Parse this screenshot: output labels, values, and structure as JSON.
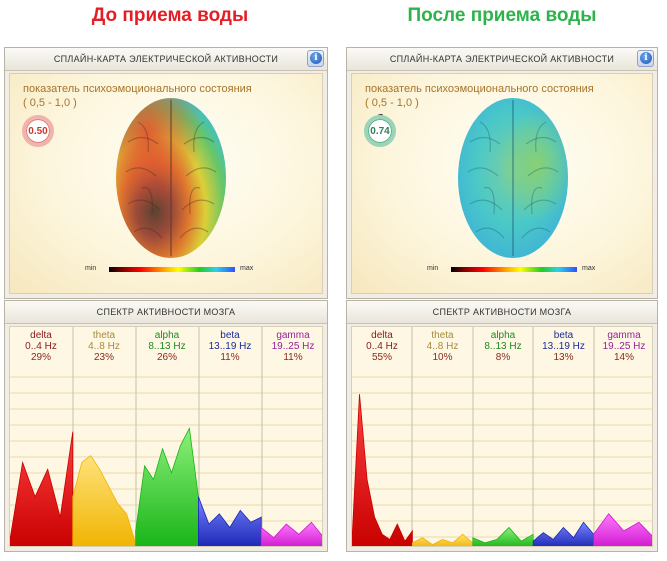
{
  "headers": {
    "before": "До приема воды",
    "after": "После приема воды"
  },
  "colors": {
    "before_header": "#e31e24",
    "after_header": "#2db34a"
  },
  "panels": [
    {
      "map_title": "СПЛАЙН-КАРТА ЭЛЕКТРИЧЕСКОЙ АКТИВНОСТИ",
      "state_title": "показатель психоэмоционального состояния",
      "state_range": "( 0,5 - 1,0 )",
      "gauge_value": "0.50",
      "gauge_color": "#e05a52",
      "scale_min": "min",
      "scale_max": "max",
      "spectrum_title": "СПЕКТР АКТИВНОСТИ МОЗГА",
      "bands": [
        {
          "name": "delta",
          "range": "0..4 Hz",
          "pct": "29%",
          "color": "#c81414"
        },
        {
          "name": "theta",
          "range": "4..8 Hz",
          "pct": "23%",
          "color": "#c8a040"
        },
        {
          "name": "alpha",
          "range": "8..13 Hz",
          "pct": "26%",
          "color": "#1e9a1e"
        },
        {
          "name": "beta",
          "range": "13..19 Hz",
          "pct": "11%",
          "color": "#1e2aa8"
        },
        {
          "name": "gamma",
          "range": "19..25 Hz",
          "pct": "11%",
          "color": "#b028b0"
        }
      ]
    },
    {
      "map_title": "СПЛАЙН-КАРТА ЭЛЕКТРИЧЕСКОЙ АКТИВНОСТИ",
      "state_title": "показатель психоэмоционального состояния",
      "state_range": "( 0,5 - 1,0 )",
      "gauge_value": "0.74",
      "gauge_color": "#4aa47a",
      "scale_min": "min",
      "scale_max": "max",
      "spectrum_title": "СПЕКТР АКТИВНОСТИ МОЗГА",
      "bands": [
        {
          "name": "delta",
          "range": "0..4 Hz",
          "pct": "55%",
          "color": "#c81414"
        },
        {
          "name": "theta",
          "range": "4..8 Hz",
          "pct": "10%",
          "color": "#c8a040"
        },
        {
          "name": "alpha",
          "range": "8..13 Hz",
          "pct": "8%",
          "color": "#1e9a1e"
        },
        {
          "name": "beta",
          "range": "13..19 Hz",
          "pct": "13%",
          "color": "#1e2aa8"
        },
        {
          "name": "gamma",
          "range": "19..25 Hz",
          "pct": "14%",
          "color": "#b028b0"
        }
      ]
    }
  ],
  "chart_data": [
    {
      "type": "area",
      "series": [
        {
          "name": "delta",
          "values": [
            5,
            50,
            30,
            46,
            18,
            68
          ]
        },
        {
          "name": "theta",
          "values": [
            30,
            50,
            54,
            46,
            36,
            26,
            20,
            3
          ]
        },
        {
          "name": "alpha",
          "values": [
            10,
            48,
            40,
            58,
            44,
            60,
            70,
            30
          ]
        },
        {
          "name": "beta",
          "values": [
            30,
            14,
            20,
            12,
            22,
            15,
            18
          ]
        },
        {
          "name": "gamma",
          "values": [
            12,
            6,
            14,
            8,
            15,
            6
          ]
        }
      ]
    },
    {
      "type": "area",
      "series": [
        {
          "name": "delta",
          "values": [
            5,
            90,
            40,
            18,
            8,
            5,
            14,
            4,
            10
          ]
        },
        {
          "name": "theta",
          "values": [
            3,
            6,
            2,
            5,
            3,
            8,
            3
          ]
        },
        {
          "name": "alpha",
          "values": [
            6,
            3,
            5,
            12,
            4,
            8
          ]
        },
        {
          "name": "beta",
          "values": [
            4,
            9,
            5,
            12,
            6,
            15,
            8
          ]
        },
        {
          "name": "gamma",
          "values": [
            8,
            20,
            10,
            15,
            6
          ]
        }
      ]
    }
  ]
}
